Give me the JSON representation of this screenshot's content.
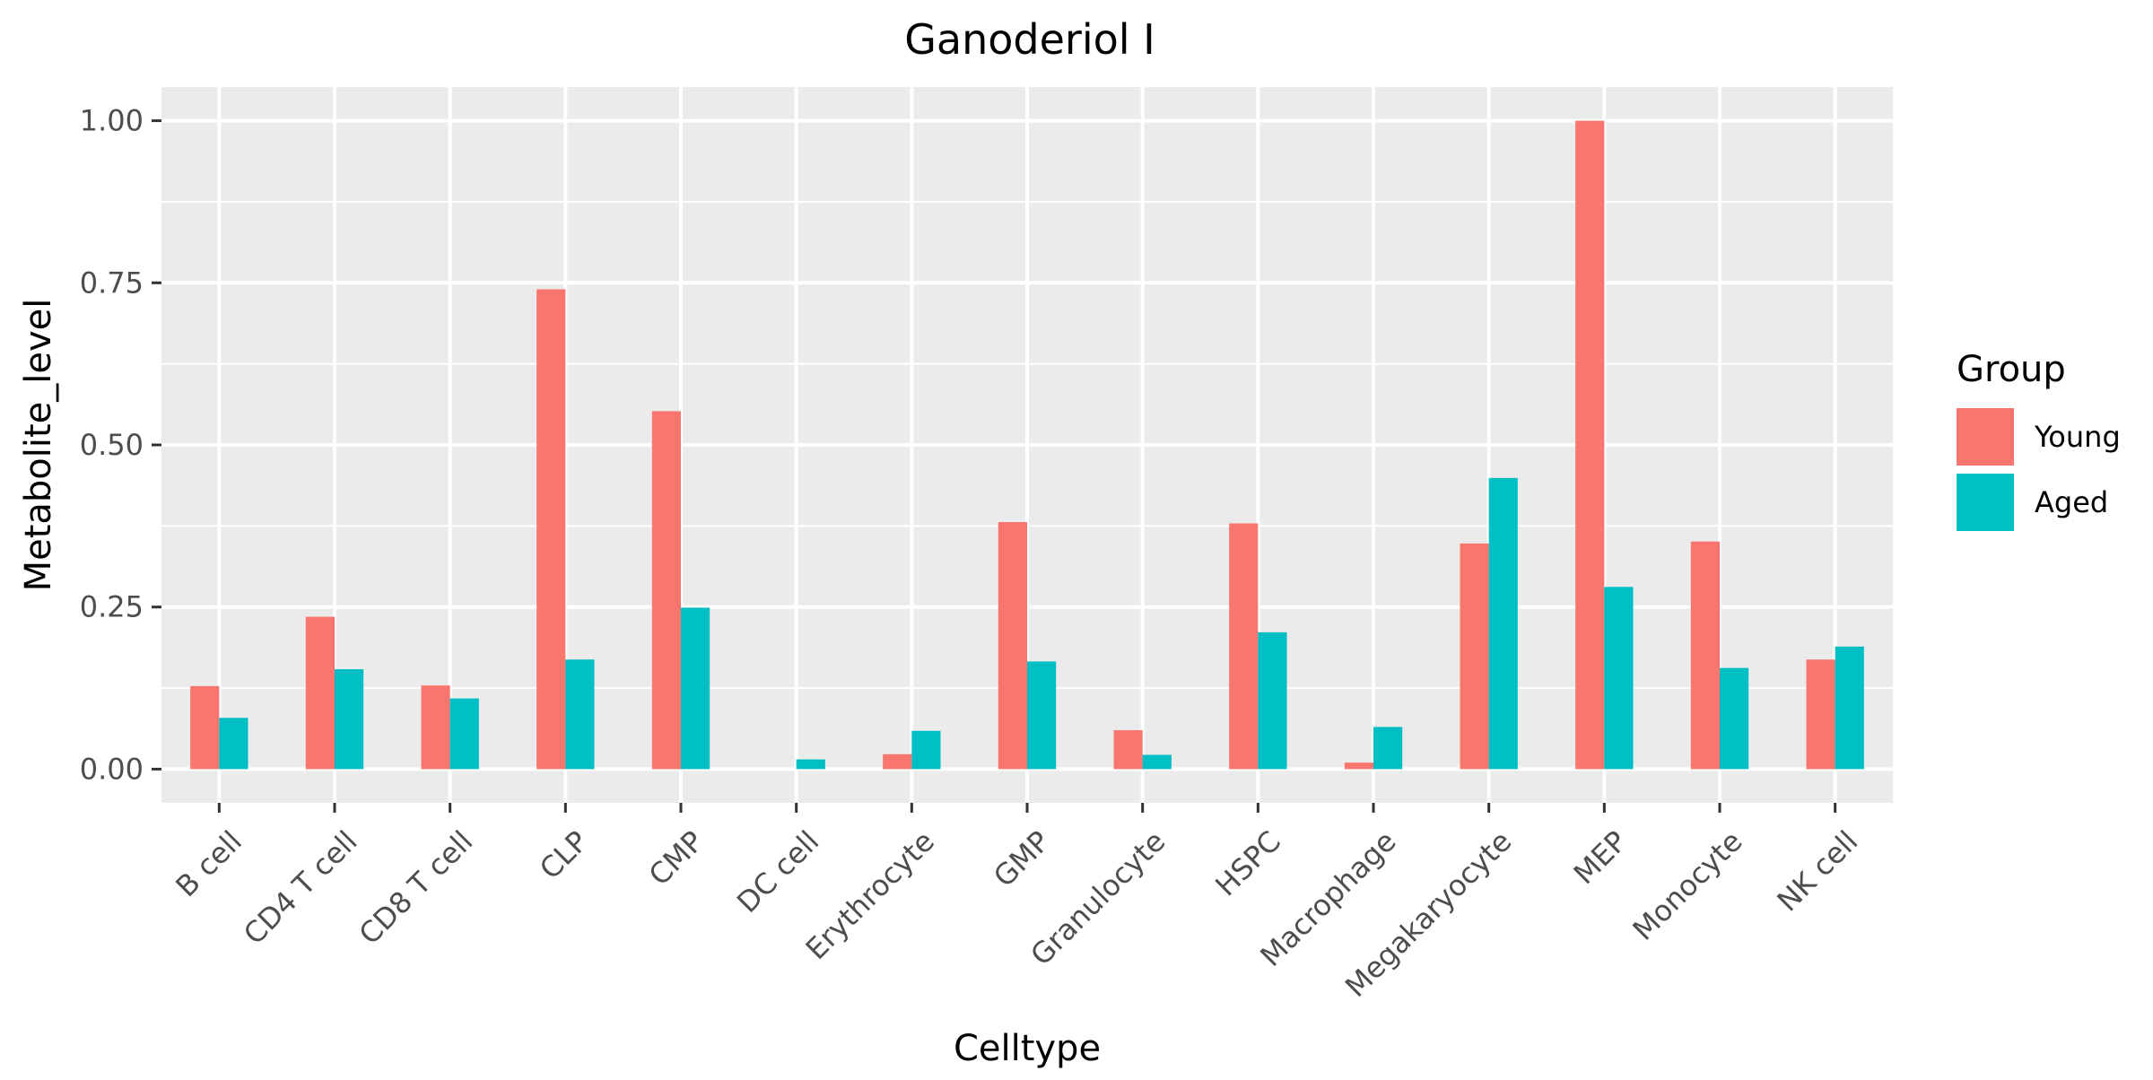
{
  "chart_data": {
    "type": "bar",
    "title": "Ganoderiol I",
    "xlabel": "Celltype",
    "ylabel": "Metabolite_level",
    "categories": [
      "B cell",
      "CD4 T cell",
      "CD8 T cell",
      "CLP",
      "CMP",
      "DC cell",
      "Erythrocyte",
      "GMP",
      "Granulocyte",
      "HSPC",
      "Macrophage",
      "Megakaryocyte",
      "MEP",
      "Monocyte",
      "NK cell"
    ],
    "series": [
      {
        "name": "Young",
        "color": "#F8766D",
        "values": [
          0.128,
          0.235,
          0.129,
          0.74,
          0.552,
          0.0,
          0.023,
          0.381,
          0.06,
          0.379,
          0.01,
          0.348,
          1.0,
          0.351,
          0.169
        ]
      },
      {
        "name": "Aged",
        "color": "#00BFC4",
        "values": [
          0.079,
          0.154,
          0.109,
          0.169,
          0.249,
          0.015,
          0.059,
          0.166,
          0.022,
          0.211,
          0.065,
          0.449,
          0.281,
          0.156,
          0.189
        ]
      }
    ],
    "ylim": [
      -0.052,
      1.052
    ],
    "yticks": [
      0.0,
      0.25,
      0.5,
      0.75,
      1.0
    ],
    "ytick_labels": [
      "0.00",
      "0.25",
      "0.50",
      "0.75",
      "1.00"
    ],
    "grid": true,
    "legend": {
      "title": "Group",
      "placement": "right"
    },
    "panel_background": "#EBEBEB",
    "grid_color": "#FFFFFF"
  }
}
